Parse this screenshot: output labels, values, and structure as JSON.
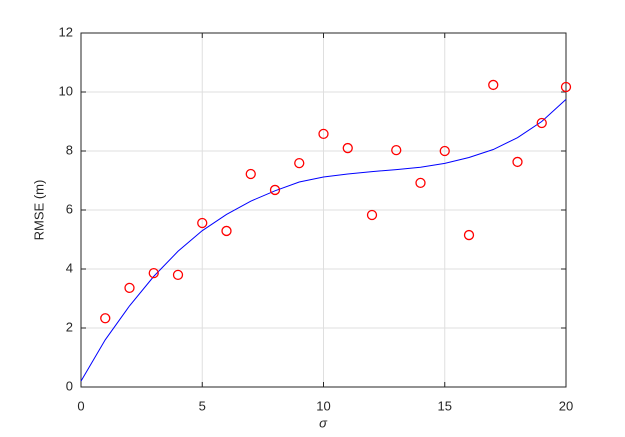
{
  "chart_data": {
    "type": "scatter",
    "x_label": "σ",
    "y_label": "RMSE (m)",
    "xlim": [
      0,
      20
    ],
    "ylim": [
      0,
      12
    ],
    "xticks": [
      0,
      5,
      10,
      15,
      20
    ],
    "yticks": [
      0,
      2,
      4,
      6,
      8,
      10,
      12
    ],
    "grid": true,
    "series": [
      {
        "style": "marker",
        "color": "#ff0000",
        "x": [
          1,
          2,
          3,
          4,
          5,
          6,
          7,
          8,
          9,
          10,
          11,
          12,
          13,
          14,
          15,
          16,
          17,
          18,
          19,
          20
        ],
        "values": [
          2.33,
          3.36,
          3.86,
          3.8,
          5.56,
          5.29,
          7.22,
          6.68,
          7.59,
          8.58,
          8.1,
          5.83,
          8.03,
          6.92,
          8.0,
          5.15,
          10.24,
          7.63,
          8.95,
          10.17
        ]
      },
      {
        "style": "line",
        "color": "#0000ff",
        "x": [
          0,
          1,
          2,
          3,
          4,
          5,
          6,
          7,
          8,
          9,
          10,
          11,
          12,
          13,
          14,
          15,
          16,
          17,
          18,
          19,
          20
        ],
        "values": [
          0.2,
          1.6,
          2.75,
          3.75,
          4.6,
          5.3,
          5.85,
          6.3,
          6.65,
          6.95,
          7.12,
          7.22,
          7.3,
          7.37,
          7.45,
          7.58,
          7.78,
          8.05,
          8.45,
          9.0,
          9.75
        ]
      }
    ]
  }
}
